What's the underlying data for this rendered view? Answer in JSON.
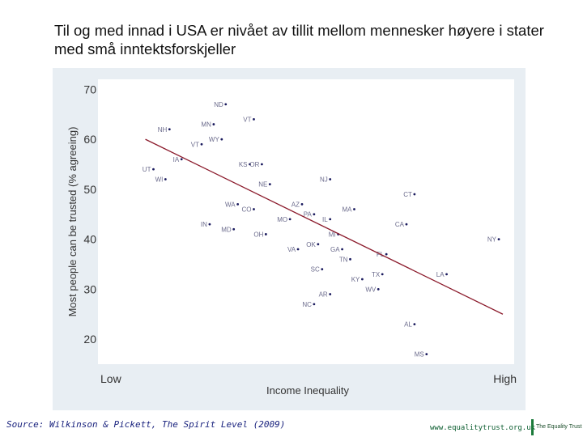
{
  "slide": {
    "title": "Til og med innad i USA er nivået av tillit mellom mennesker høyere i stater med små inntektsforskjeller",
    "source": "Source: Wilkinson & Pickett, The Spirit Level (2009)",
    "website": "www.equalitytrust.org.uk",
    "logo_text": "The Equality Trust"
  },
  "colors": {
    "panel_bg": "#e8eef3",
    "plot_bg": "#ffffff",
    "point": "#1a1a5e",
    "label": "#6b6b8c",
    "trend": "#8b1a2b",
    "axis_text": "#333333"
  },
  "chart_data": {
    "type": "scatter",
    "title": "",
    "xlabel": "Income Inequality",
    "ylabel": "Most people can be trusted (% agreeing)",
    "x_tick_labels": [
      "Low",
      "High"
    ],
    "xlim": [
      0,
      100
    ],
    "ylim": [
      15,
      72
    ],
    "yticks": [
      20,
      30,
      40,
      50,
      60,
      70
    ],
    "grid": false,
    "legend": "none",
    "points": [
      {
        "label": "ND",
        "x": 31,
        "y": 67
      },
      {
        "label": "MN",
        "x": 28,
        "y": 63
      },
      {
        "label": "VT",
        "x": 38,
        "y": 64
      },
      {
        "label": "NH",
        "x": 17,
        "y": 62
      },
      {
        "label": "WY",
        "x": 30,
        "y": 60
      },
      {
        "label": "VT",
        "x": 25,
        "y": 59
      },
      {
        "label": "IA",
        "x": 20,
        "y": 56
      },
      {
        "label": "KS",
        "x": 37,
        "y": 55
      },
      {
        "label": "OR",
        "x": 40,
        "y": 55
      },
      {
        "label": "UT",
        "x": 13,
        "y": 54
      },
      {
        "label": "WI",
        "x": 16,
        "y": 52
      },
      {
        "label": "NE",
        "x": 42,
        "y": 51
      },
      {
        "label": "NJ",
        "x": 57,
        "y": 52
      },
      {
        "label": "CT",
        "x": 78,
        "y": 49
      },
      {
        "label": "AZ",
        "x": 50,
        "y": 47
      },
      {
        "label": "WA",
        "x": 34,
        "y": 47
      },
      {
        "label": "CO",
        "x": 38,
        "y": 46
      },
      {
        "label": "MA",
        "x": 63,
        "y": 46
      },
      {
        "label": "PA",
        "x": 53,
        "y": 45
      },
      {
        "label": "MO",
        "x": 47,
        "y": 44
      },
      {
        "label": "IL",
        "x": 57,
        "y": 44
      },
      {
        "label": "IN",
        "x": 27,
        "y": 43
      },
      {
        "label": "CA",
        "x": 76,
        "y": 43
      },
      {
        "label": "MD",
        "x": 33,
        "y": 42
      },
      {
        "label": "OH",
        "x": 41,
        "y": 41
      },
      {
        "label": "MI",
        "x": 59,
        "y": 41
      },
      {
        "label": "NY",
        "x": 99,
        "y": 40
      },
      {
        "label": "OK",
        "x": 54,
        "y": 39
      },
      {
        "label": "VA",
        "x": 49,
        "y": 38
      },
      {
        "label": "GA",
        "x": 60,
        "y": 38
      },
      {
        "label": "FL",
        "x": 71,
        "y": 37
      },
      {
        "label": "TN",
        "x": 62,
        "y": 36
      },
      {
        "label": "SC",
        "x": 55,
        "y": 34
      },
      {
        "label": "TX",
        "x": 70,
        "y": 33
      },
      {
        "label": "LA",
        "x": 86,
        "y": 33
      },
      {
        "label": "KY",
        "x": 65,
        "y": 32
      },
      {
        "label": "WV",
        "x": 69,
        "y": 30
      },
      {
        "label": "AR",
        "x": 57,
        "y": 29
      },
      {
        "label": "NC",
        "x": 53,
        "y": 27
      },
      {
        "label": "AL",
        "x": 78,
        "y": 23
      },
      {
        "label": "MS",
        "x": 81,
        "y": 17
      }
    ],
    "trendline": {
      "x": [
        11,
        100
      ],
      "y": [
        60,
        25
      ]
    }
  }
}
